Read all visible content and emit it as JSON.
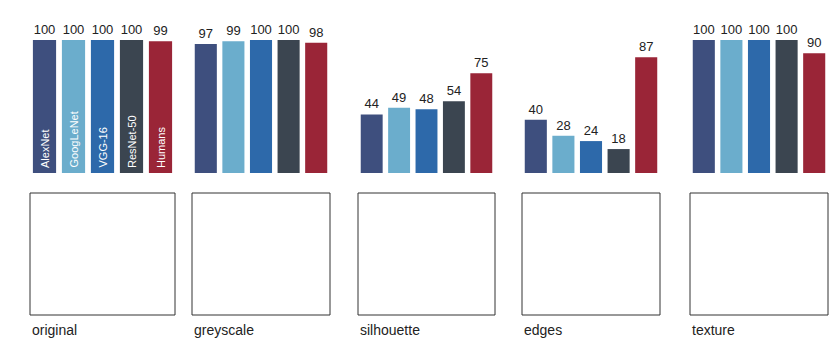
{
  "chart_data": [
    {
      "type": "bar",
      "xlabel": "original",
      "categories": [
        "AlexNet",
        "GoogLeNet",
        "VGG-16",
        "ResNet-50",
        "Humans"
      ],
      "values": [
        100,
        100,
        100,
        100,
        99
      ],
      "colors": [
        "#3e4f7e",
        "#6badcc",
        "#2d69aa",
        "#3b4550",
        "#9a2537"
      ],
      "ylim": [
        0,
        100
      ],
      "data_labels": true,
      "tick_labels": false
    },
    {
      "type": "bar",
      "xlabel": "greyscale",
      "categories": [
        null,
        null,
        null,
        null,
        null
      ],
      "values": [
        97,
        99,
        100,
        100,
        98
      ],
      "colors": [
        "#3e4f7e",
        "#6badcc",
        "#2d69aa",
        "#3b4550",
        "#9a2537"
      ],
      "ylim": [
        0,
        100
      ],
      "data_labels": true,
      "tick_labels": false
    },
    {
      "type": "bar",
      "xlabel": "silhouette",
      "categories": [
        null,
        null,
        null,
        null,
        null
      ],
      "values": [
        44,
        49,
        48,
        54,
        75
      ],
      "colors": [
        "#3e4f7e",
        "#6badcc",
        "#2d69aa",
        "#3b4550",
        "#9a2537"
      ],
      "ylim": [
        0,
        100
      ],
      "data_labels": true,
      "tick_labels": false
    },
    {
      "type": "bar",
      "xlabel": "edges",
      "categories": [
        null,
        null,
        null,
        null,
        null
      ],
      "values": [
        40,
        28,
        24,
        18,
        87
      ],
      "colors": [
        "#3e4f7e",
        "#6badcc",
        "#2d69aa",
        "#3b4550",
        "#9a2537"
      ],
      "ylim": [
        0,
        100
      ],
      "data_labels": true,
      "tick_labels": false
    },
    {
      "type": "bar",
      "xlabel": "texture",
      "categories": [
        null,
        null,
        null,
        null,
        null
      ],
      "values": [
        100,
        100,
        100,
        100,
        90
      ],
      "colors": [
        "#3e4f7e",
        "#6badcc",
        "#2d69aa",
        "#3b4550",
        "#9a2537"
      ],
      "ylim": [
        0,
        100
      ],
      "data_labels": true,
      "tick_labels": false
    }
  ]
}
